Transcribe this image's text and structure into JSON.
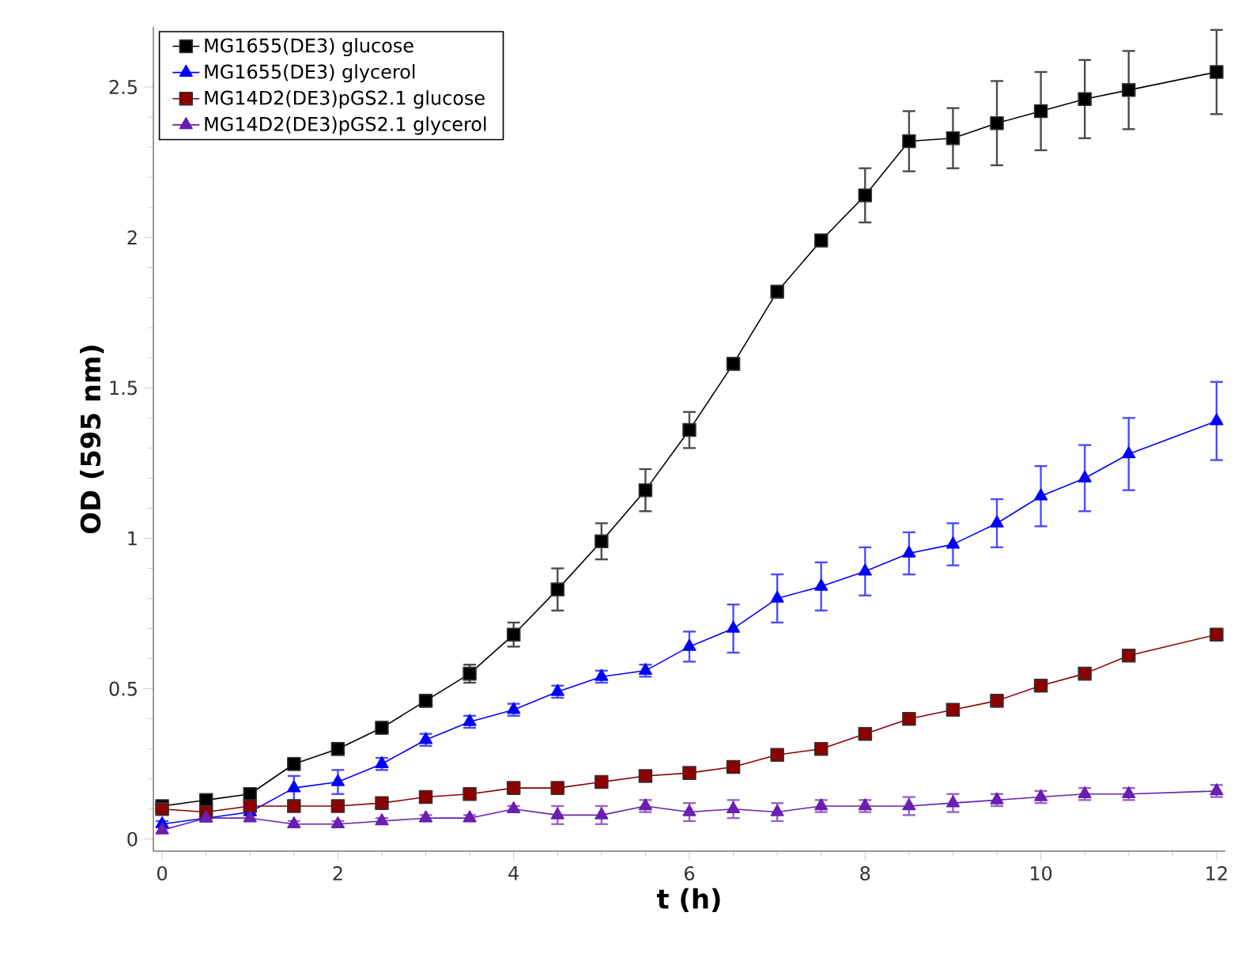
{
  "chart_data": {
    "type": "line",
    "xlabel": "t (h)",
    "ylabel": "OD (595 nm)",
    "xlim": [
      -0.1,
      12.1
    ],
    "ylim": [
      -0.04,
      2.7
    ],
    "xticks": [
      0,
      2,
      4,
      6,
      8,
      10,
      12
    ],
    "yticks": [
      0,
      0.5,
      1,
      1.5,
      2,
      2.5
    ],
    "grid": false,
    "legend": "top left",
    "line_style": "solid",
    "x": [
      0,
      0.5,
      1,
      1.5,
      2,
      2.5,
      3,
      3.5,
      4,
      4.5,
      5,
      5.5,
      6,
      6.5,
      7,
      7.5,
      8,
      8.5,
      9,
      9.5,
      10,
      10.5,
      11,
      12
    ],
    "series": [
      {
        "name": "MG1655(DE3) glucose",
        "color": "#000000",
        "marker": "square",
        "values": [
          0.11,
          0.13,
          0.15,
          0.25,
          0.3,
          0.37,
          0.46,
          0.55,
          0.68,
          0.83,
          0.99,
          1.16,
          1.36,
          1.58,
          1.82,
          1.99,
          2.14,
          2.32,
          2.33,
          2.38,
          2.42,
          2.46,
          2.49,
          2.55
        ],
        "errors": [
          0.01,
          0.01,
          0.01,
          0.02,
          0.02,
          0.02,
          0.02,
          0.03,
          0.04,
          0.07,
          0.06,
          0.07,
          0.06,
          0.02,
          0.02,
          0.02,
          0.09,
          0.1,
          0.1,
          0.14,
          0.13,
          0.13,
          0.13,
          0.14
        ]
      },
      {
        "name": "MG1655(DE3) glycerol",
        "color": "#0000ff",
        "marker": "triangle",
        "values": [
          0.05,
          0.07,
          0.09,
          0.17,
          0.19,
          0.25,
          0.33,
          0.39,
          0.43,
          0.49,
          0.54,
          0.56,
          0.64,
          0.7,
          0.8,
          0.84,
          0.89,
          0.95,
          0.98,
          1.05,
          1.14,
          1.2,
          1.28,
          1.39
        ],
        "errors": [
          0.01,
          0.01,
          0.01,
          0.04,
          0.04,
          0.02,
          0.02,
          0.02,
          0.02,
          0.02,
          0.02,
          0.02,
          0.05,
          0.08,
          0.08,
          0.08,
          0.08,
          0.07,
          0.07,
          0.08,
          0.1,
          0.11,
          0.12,
          0.13
        ]
      },
      {
        "name": "MG14D2(DE3)pGS2.1 glucose",
        "color": "#8b0000",
        "marker": "square",
        "values": [
          0.1,
          0.09,
          0.11,
          0.11,
          0.11,
          0.12,
          0.14,
          0.15,
          0.17,
          0.17,
          0.19,
          0.21,
          0.22,
          0.24,
          0.28,
          0.3,
          0.35,
          0.4,
          0.43,
          0.46,
          0.51,
          0.55,
          0.61,
          0.68
        ]
      },
      {
        "name": "MG14D2(DE3)pGS2.1 glycerol",
        "color": "#6a1fb0",
        "marker": "triangle",
        "values": [
          0.03,
          0.07,
          0.07,
          0.05,
          0.05,
          0.06,
          0.07,
          0.07,
          0.1,
          0.08,
          0.08,
          0.11,
          0.09,
          0.1,
          0.09,
          0.11,
          0.11,
          0.11,
          0.12,
          0.13,
          0.14,
          0.15,
          0.15,
          0.16
        ],
        "errors": [
          0.01,
          0.01,
          0.01,
          0.01,
          0.01,
          0.01,
          0.01,
          0.01,
          0.01,
          0.03,
          0.03,
          0.02,
          0.03,
          0.03,
          0.03,
          0.02,
          0.02,
          0.03,
          0.03,
          0.02,
          0.02,
          0.02,
          0.02,
          0.02
        ]
      }
    ]
  }
}
